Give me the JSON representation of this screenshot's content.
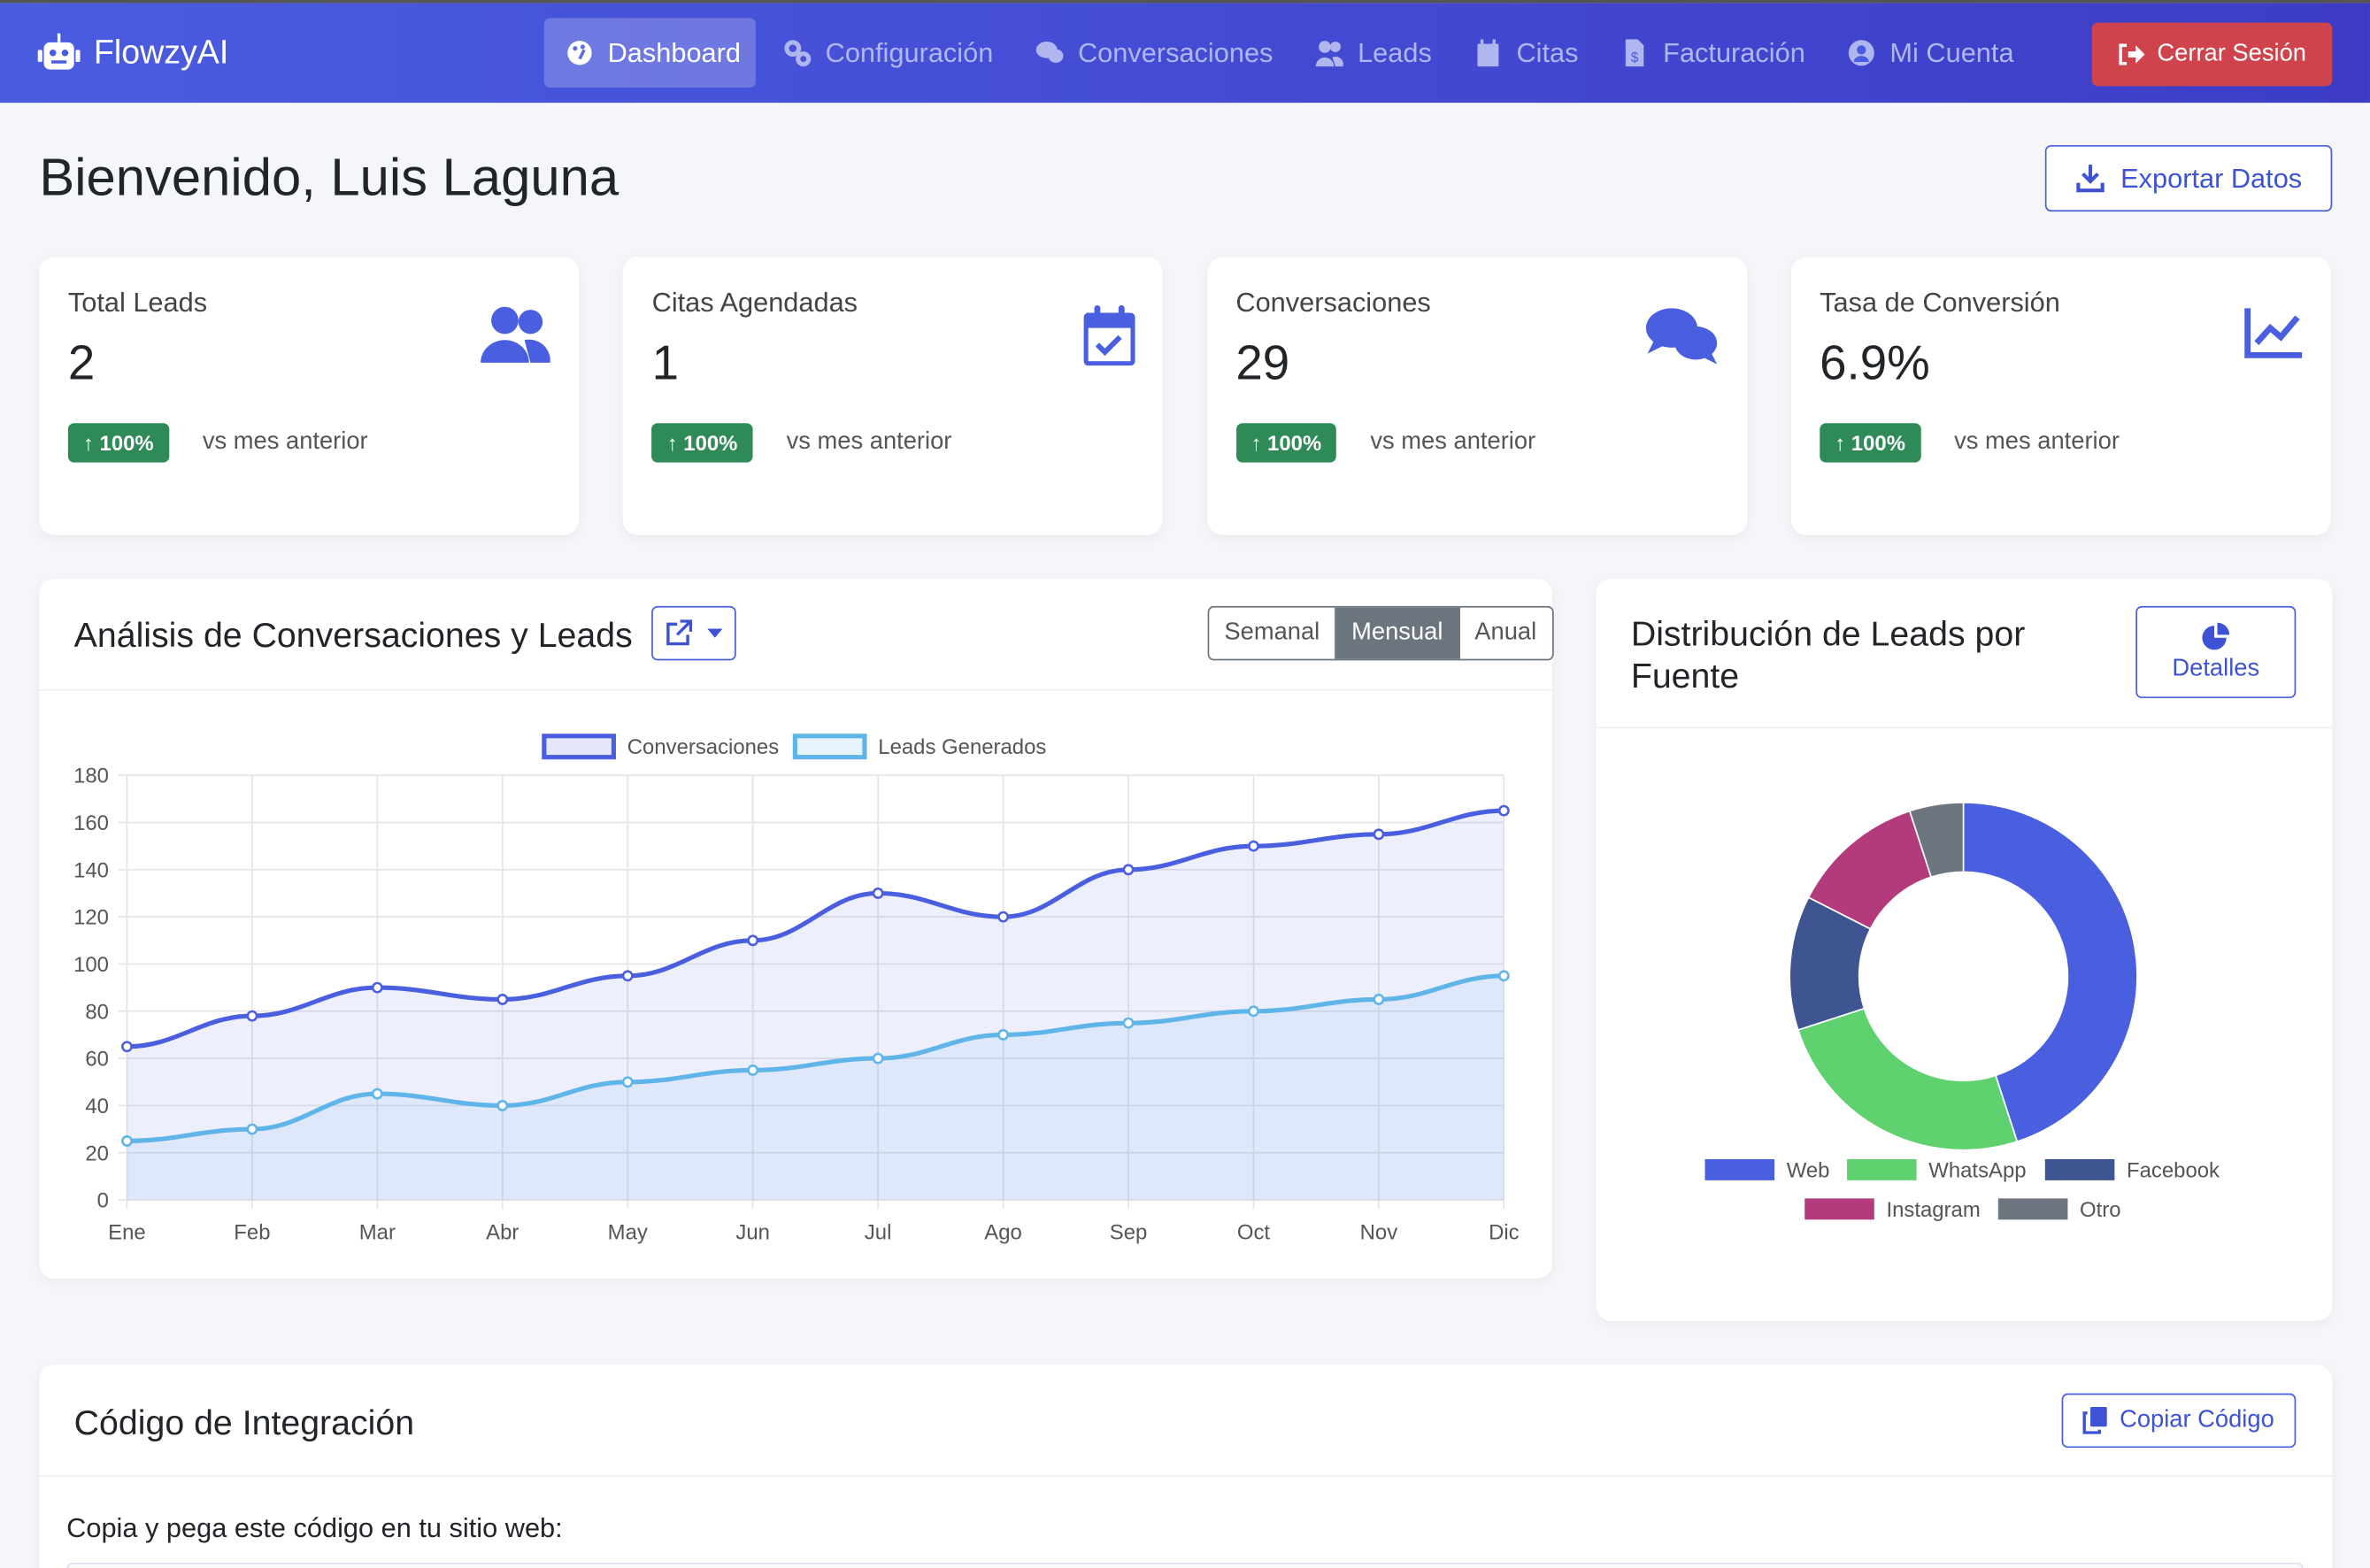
{
  "navbar": {
    "brand": "FlowzyAI",
    "items": [
      {
        "label": "Dashboard",
        "icon": "gauge-icon",
        "active": true
      },
      {
        "label": "Configuración",
        "icon": "cogs-icon"
      },
      {
        "label": "Conversaciones",
        "icon": "comments-icon"
      },
      {
        "label": "Leads",
        "icon": "users-icon"
      },
      {
        "label": "Citas",
        "icon": "calendar-icon"
      },
      {
        "label": "Facturación",
        "icon": "invoice-icon"
      },
      {
        "label": "Mi Cuenta",
        "icon": "user-circle-icon"
      }
    ],
    "logout": "Cerrar Sesión"
  },
  "page": {
    "title": "Bienvenido, Luis Laguna",
    "export": "Exportar Datos"
  },
  "stats": [
    {
      "label": "Total Leads",
      "value": "2",
      "change": "100%",
      "vs": "vs mes anterior",
      "icon": "users-icon"
    },
    {
      "label": "Citas Agendadas",
      "value": "1",
      "change": "100%",
      "vs": "vs mes anterior",
      "icon": "calendar-check-icon"
    },
    {
      "label": "Conversaciones",
      "value": "29",
      "change": "100%",
      "vs": "vs mes anterior",
      "icon": "comments-icon"
    },
    {
      "label": "Tasa de Conversión",
      "value": "6.9%",
      "change": "100%",
      "vs": "vs mes anterior",
      "icon": "chart-line-icon"
    }
  ],
  "analysis": {
    "title": "Análisis de Conversaciones y Leads",
    "periods": [
      "Semanal",
      "Mensual",
      "Anual"
    ],
    "selected": "Mensual"
  },
  "distribution": {
    "title": "Distribución de Leads por Fuente",
    "details": "Detalles"
  },
  "integration": {
    "title": "Código de Integración",
    "copy": "Copiar Código",
    "instructions": "Copia y pega este código en tu sitio web:"
  },
  "colors": {
    "primary": "#4a5ee0",
    "danger": "#cf444c",
    "success": "#2e8b57"
  },
  "chart_data": [
    {
      "type": "line",
      "categories": [
        "Ene",
        "Feb",
        "Mar",
        "Abr",
        "May",
        "Jun",
        "Jul",
        "Ago",
        "Sep",
        "Oct",
        "Nov",
        "Dic"
      ],
      "ylim": [
        0,
        180
      ],
      "yticks": [
        0,
        20,
        40,
        60,
        80,
        100,
        120,
        140,
        160,
        180
      ],
      "grid": true,
      "legend": "top",
      "series": [
        {
          "name": "Conversaciones",
          "color": "#4a5ee0",
          "values": [
            65,
            78,
            90,
            85,
            95,
            110,
            130,
            120,
            140,
            150,
            155,
            165
          ]
        },
        {
          "name": "Leads Generados",
          "color": "#5fb4e8",
          "values": [
            25,
            30,
            45,
            40,
            50,
            55,
            60,
            70,
            75,
            80,
            85,
            95
          ]
        }
      ]
    },
    {
      "type": "pie",
      "donut": true,
      "legend": "bottom",
      "labels": [
        "Web",
        "WhatsApp",
        "Facebook",
        "Instagram",
        "Otro"
      ],
      "values": [
        45,
        25,
        12.5,
        12.5,
        5
      ],
      "colors": [
        "#4a5ee0",
        "#5fd16f",
        "#3e5591",
        "#b43b7b",
        "#6c757d"
      ]
    }
  ]
}
